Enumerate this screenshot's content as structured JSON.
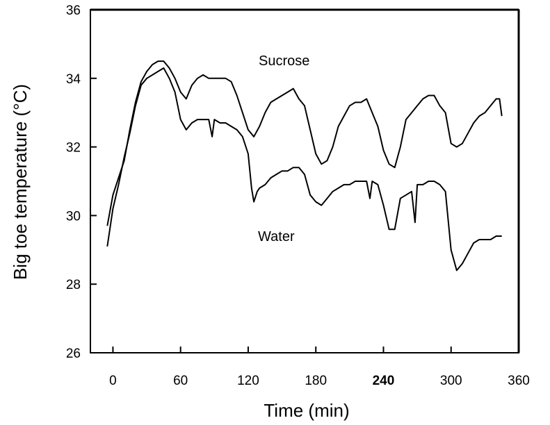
{
  "chart_data": {
    "type": "line",
    "title": "",
    "xlabel": "Time (min)",
    "ylabel": "Big toe temperature (°C)",
    "xlim": [
      -20,
      360
    ],
    "ylim": [
      26,
      36
    ],
    "x_ticks": [
      0,
      60,
      120,
      180,
      240,
      300,
      360
    ],
    "x_tick_labels": [
      "0",
      "60",
      "120",
      "180",
      "240",
      "300",
      "360"
    ],
    "x_tick_bold": [
      false,
      false,
      false,
      false,
      true,
      false,
      false
    ],
    "y_ticks": [
      26,
      28,
      30,
      32,
      34,
      36
    ],
    "y_tick_labels": [
      "26",
      "28",
      "30",
      "32",
      "34",
      "36"
    ],
    "grid": false,
    "series": [
      {
        "name": "Sucrose",
        "x": [
          -5,
          0,
          5,
          10,
          15,
          20,
          25,
          30,
          35,
          40,
          45,
          50,
          55,
          60,
          65,
          70,
          75,
          80,
          85,
          90,
          95,
          100,
          105,
          110,
          115,
          120,
          125,
          130,
          135,
          140,
          145,
          150,
          155,
          160,
          165,
          170,
          175,
          180,
          185,
          190,
          195,
          200,
          205,
          210,
          215,
          220,
          225,
          230,
          235,
          240,
          245,
          250,
          255,
          260,
          265,
          270,
          275,
          280,
          285,
          290,
          295,
          300,
          305,
          310,
          315,
          320,
          325,
          330,
          335,
          340,
          343,
          345
        ],
        "y": [
          29.7,
          30.6,
          31.1,
          31.6,
          32.5,
          33.3,
          33.9,
          34.2,
          34.4,
          34.5,
          34.5,
          34.3,
          34.0,
          33.6,
          33.4,
          33.8,
          34.0,
          34.1,
          34.0,
          34.0,
          34.0,
          34.0,
          33.9,
          33.5,
          33.0,
          32.5,
          32.3,
          32.6,
          33.0,
          33.3,
          33.4,
          33.5,
          33.6,
          33.7,
          33.4,
          33.2,
          32.5,
          31.8,
          31.5,
          31.6,
          32.0,
          32.6,
          32.9,
          33.2,
          33.3,
          33.3,
          33.4,
          33.0,
          32.6,
          31.9,
          31.5,
          31.4,
          32.0,
          32.8,
          33.0,
          33.2,
          33.4,
          33.5,
          33.5,
          33.2,
          33.0,
          32.1,
          32.0,
          32.1,
          32.4,
          32.7,
          32.9,
          33.0,
          33.2,
          33.4,
          33.4,
          32.9
        ]
      },
      {
        "name": "Water",
        "x": [
          -5,
          0,
          5,
          10,
          15,
          20,
          25,
          30,
          35,
          40,
          45,
          50,
          55,
          60,
          65,
          70,
          75,
          80,
          85,
          88,
          90,
          95,
          100,
          105,
          110,
          115,
          120,
          123,
          125,
          128,
          130,
          135,
          140,
          145,
          150,
          155,
          160,
          165,
          170,
          175,
          180,
          185,
          190,
          195,
          200,
          205,
          210,
          215,
          220,
          225,
          228,
          230,
          235,
          240,
          245,
          250,
          255,
          260,
          265,
          268,
          270,
          275,
          280,
          285,
          290,
          295,
          300,
          305,
          310,
          315,
          320,
          325,
          330,
          335,
          340,
          345
        ],
        "y": [
          29.1,
          30.2,
          30.9,
          31.7,
          32.4,
          33.2,
          33.8,
          34.0,
          34.1,
          34.2,
          34.3,
          34.0,
          33.6,
          32.8,
          32.5,
          32.7,
          32.8,
          32.8,
          32.8,
          32.3,
          32.8,
          32.7,
          32.7,
          32.6,
          32.5,
          32.3,
          31.8,
          30.8,
          30.4,
          30.7,
          30.8,
          30.9,
          31.1,
          31.2,
          31.3,
          31.3,
          31.4,
          31.4,
          31.2,
          30.6,
          30.4,
          30.3,
          30.5,
          30.7,
          30.8,
          30.9,
          30.9,
          31.0,
          31.0,
          31.0,
          30.5,
          31.0,
          30.9,
          30.3,
          29.6,
          29.6,
          30.5,
          30.6,
          30.7,
          29.8,
          30.9,
          30.9,
          31.0,
          31.0,
          30.9,
          30.7,
          29.0,
          28.4,
          28.6,
          28.9,
          29.2,
          29.3,
          29.3,
          29.3,
          29.4,
          29.4
        ]
      }
    ]
  }
}
